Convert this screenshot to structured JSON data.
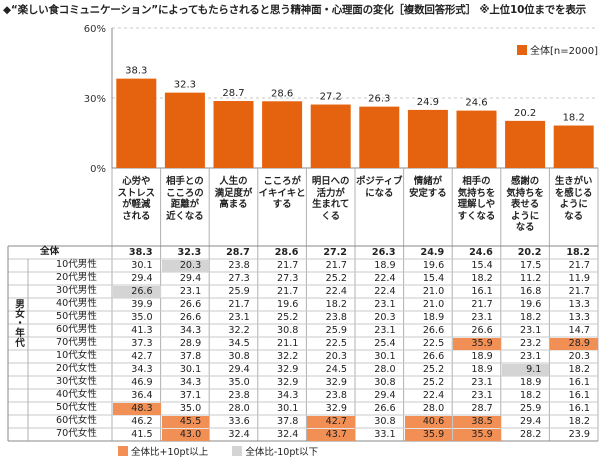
{
  "title": "◆“楽しい食コミュニケーション”によってもたらされると思う精神面・心理面の変化［複数回答形式］ ※上位10位までを表示",
  "colors": {
    "bar": "#e5620e",
    "high": "#f28f55",
    "low": "#d4d4d4",
    "grid": "#999999"
  },
  "chart_data": {
    "type": "bar",
    "categories": [
      "心労やストレスが軽減される",
      "相手とのこころの距離が近くなる",
      "人生の満足度が高まる",
      "こころがイキイキとする",
      "明日への活力が生まれてくる",
      "ポジティブになる",
      "情緒が安定する",
      "相手の気持ちを理解しやすくなる",
      "感謝の気持ちを表せるようになる",
      "生きがいを感じるようになる"
    ],
    "category_lines": [
      [
        "心労や",
        "ストレス",
        "が軽減",
        "される"
      ],
      [
        "相手との",
        "こころの",
        "距離が",
        "近くなる"
      ],
      [
        "人生の",
        "満足度が",
        "高まる"
      ],
      [
        "こころが",
        "イキイキと",
        "する"
      ],
      [
        "明日への",
        "活力が",
        "生まれて",
        "くる"
      ],
      [
        "ポジティブ",
        "になる"
      ],
      [
        "情緒が",
        "安定する"
      ],
      [
        "相手の",
        "気持ちを",
        "理解しや",
        "すくなる"
      ],
      [
        "感謝の",
        "気持ちを",
        "表せる",
        "ように",
        "なる"
      ],
      [
        "生きがい",
        "を感じる",
        "ように",
        "なる"
      ]
    ],
    "series": [
      {
        "name": "全体[n=2000]",
        "values": [
          38.3,
          32.3,
          28.7,
          28.6,
          27.2,
          26.3,
          24.9,
          24.6,
          20.2,
          18.2
        ]
      }
    ],
    "ylim": [
      0,
      60
    ],
    "yticks": [
      "0%",
      "30%",
      "60%"
    ]
  },
  "table": {
    "group_label": "男女・年代",
    "rows": [
      {
        "label": "全体",
        "values": [
          "38.3",
          "32.3",
          "28.7",
          "28.6",
          "27.2",
          "26.3",
          "24.9",
          "24.6",
          "20.2",
          "18.2"
        ],
        "hl": "..........",
        "total": true
      },
      {
        "label": "10代男性",
        "values": [
          "30.1",
          "20.3",
          "23.8",
          "21.7",
          "21.7",
          "18.9",
          "19.6",
          "15.4",
          "17.5",
          "21.7"
        ],
        "hl": ".L........"
      },
      {
        "label": "20代男性",
        "values": [
          "29.4",
          "29.4",
          "27.3",
          "27.3",
          "25.2",
          "22.4",
          "15.4",
          "18.2",
          "11.2",
          "11.9"
        ],
        "hl": ".........."
      },
      {
        "label": "30代男性",
        "values": [
          "26.6",
          "23.1",
          "25.9",
          "21.7",
          "22.4",
          "22.4",
          "21.0",
          "16.1",
          "16.8",
          "21.7"
        ],
        "hl": "L........."
      },
      {
        "label": "40代男性",
        "values": [
          "39.9",
          "26.6",
          "21.7",
          "19.6",
          "18.2",
          "23.1",
          "21.0",
          "21.7",
          "19.6",
          "13.3"
        ],
        "hl": ".........."
      },
      {
        "label": "50代男性",
        "values": [
          "35.0",
          "26.6",
          "23.1",
          "25.2",
          "23.8",
          "20.3",
          "18.9",
          "23.1",
          "18.2",
          "13.3"
        ],
        "hl": ".........."
      },
      {
        "label": "60代男性",
        "values": [
          "41.3",
          "34.3",
          "32.2",
          "30.8",
          "25.9",
          "23.1",
          "26.6",
          "26.6",
          "23.1",
          "14.7"
        ],
        "hl": ".........."
      },
      {
        "label": "70代男性",
        "values": [
          "37.3",
          "28.9",
          "34.5",
          "21.1",
          "22.5",
          "25.4",
          "22.5",
          "35.9",
          "23.2",
          "28.9"
        ],
        "hl": ".......H.H"
      },
      {
        "label": "10代女性",
        "values": [
          "42.7",
          "37.8",
          "30.8",
          "32.2",
          "20.3",
          "30.1",
          "26.6",
          "18.9",
          "23.1",
          "20.3"
        ],
        "hl": ".........."
      },
      {
        "label": "20代女性",
        "values": [
          "34.3",
          "30.1",
          "29.4",
          "32.9",
          "24.5",
          "28.0",
          "25.2",
          "18.9",
          "9.1",
          "18.2"
        ],
        "hl": "........L."
      },
      {
        "label": "30代女性",
        "values": [
          "46.9",
          "34.3",
          "35.0",
          "32.9",
          "32.9",
          "30.8",
          "25.2",
          "23.1",
          "18.9",
          "16.1"
        ],
        "hl": ".........."
      },
      {
        "label": "40代女性",
        "values": [
          "36.4",
          "37.1",
          "23.8",
          "34.3",
          "23.8",
          "29.4",
          "22.4",
          "23.1",
          "18.2",
          "16.1"
        ],
        "hl": ".........."
      },
      {
        "label": "50代女性",
        "values": [
          "48.3",
          "35.0",
          "28.0",
          "30.1",
          "32.9",
          "26.6",
          "28.0",
          "28.7",
          "25.9",
          "16.1"
        ],
        "hl": "H........."
      },
      {
        "label": "60代女性",
        "values": [
          "46.2",
          "45.5",
          "33.6",
          "37.8",
          "42.7",
          "30.8",
          "40.6",
          "38.5",
          "29.4",
          "18.2"
        ],
        "hl": ".H..H.HH.."
      },
      {
        "label": "70代女性",
        "values": [
          "41.5",
          "43.0",
          "32.4",
          "32.4",
          "43.7",
          "33.1",
          "35.9",
          "35.9",
          "28.2",
          "23.9"
        ],
        "hl": ".H..H.HH.."
      }
    ]
  },
  "legend": {
    "top": "全体[n=2000]",
    "high": "全体比+10pt以上",
    "low": "全体比-10pt以下"
  }
}
